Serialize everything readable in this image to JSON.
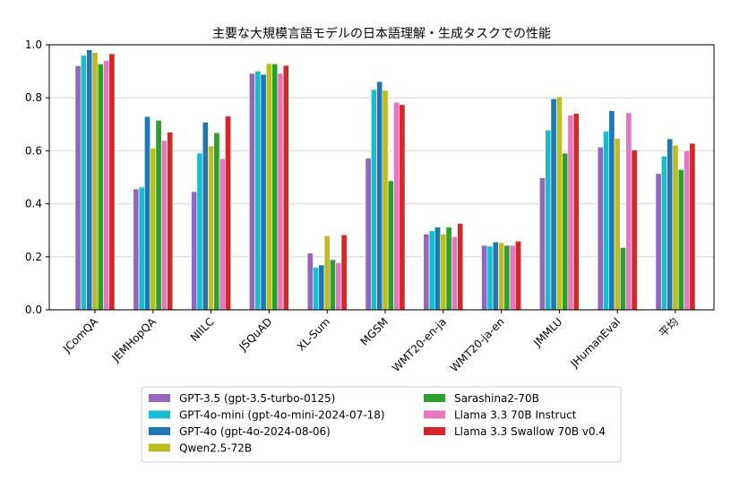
{
  "chart_data": {
    "type": "bar",
    "title": "主要な大規模言語モデルの日本語理解・生成タスクでの性能",
    "xlabel": "",
    "ylabel": "",
    "ylim": [
      0,
      1.0
    ],
    "yticks": [
      "0.0",
      "0.2",
      "0.4",
      "0.6",
      "0.8",
      "1.0"
    ],
    "grid": "horizontal",
    "legend_position": "bottom",
    "categories": [
      "JComQA",
      "JEMHopQA",
      "NIILC",
      "JSQuAD",
      "XL-Sum",
      "MGSM",
      "WMT20-en-ja",
      "WMT20-ja-en",
      "JMMLU",
      "JHumanEval",
      "平均"
    ],
    "series": [
      {
        "name": "GPT-3.5 (gpt-3.5-turbo-0125)",
        "color": "#9467bd",
        "values": [
          0.921,
          0.456,
          0.446,
          0.892,
          0.214,
          0.572,
          0.286,
          0.243,
          0.498,
          0.614,
          0.514
        ]
      },
      {
        "name": "GPT-4o-mini (gpt-4o-mini-2024-07-18)",
        "color": "#17becf",
        "values": [
          0.96,
          0.463,
          0.591,
          0.901,
          0.16,
          0.831,
          0.298,
          0.24,
          0.678,
          0.674,
          0.58
        ]
      },
      {
        "name": "GPT-4o (gpt-4o-2024-08-06)",
        "color": "#1f77b4",
        "values": [
          0.981,
          0.729,
          0.708,
          0.888,
          0.169,
          0.861,
          0.312,
          0.256,
          0.796,
          0.751,
          0.645
        ]
      },
      {
        "name": "Qwen2.5-72B",
        "color": "#bcbd22",
        "values": [
          0.971,
          0.61,
          0.618,
          0.929,
          0.279,
          0.828,
          0.286,
          0.253,
          0.804,
          0.647,
          0.621
        ]
      },
      {
        "name": "Sarashina2-70B",
        "color": "#2ca02c",
        "values": [
          0.928,
          0.715,
          0.668,
          0.928,
          0.189,
          0.487,
          0.312,
          0.243,
          0.591,
          0.235,
          0.529
        ]
      },
      {
        "name": "Llama 3.3 70B Instruct",
        "color": "#e377c2",
        "values": [
          0.94,
          0.639,
          0.57,
          0.892,
          0.178,
          0.783,
          0.276,
          0.243,
          0.734,
          0.743,
          0.6
        ]
      },
      {
        "name": "Llama 3.3 Swallow 70B v0.4",
        "color": "#d62728",
        "values": [
          0.966,
          0.67,
          0.731,
          0.922,
          0.283,
          0.774,
          0.326,
          0.259,
          0.741,
          0.603,
          0.628
        ]
      }
    ]
  }
}
